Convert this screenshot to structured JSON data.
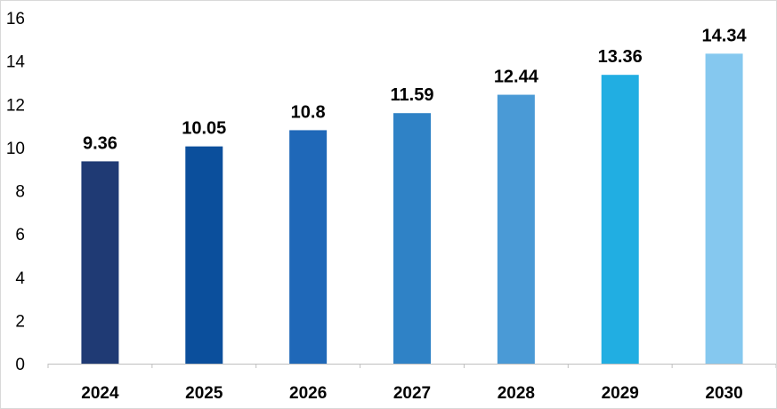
{
  "chart_data": {
    "type": "bar",
    "title": "",
    "xlabel": "",
    "ylabel": "",
    "categories": [
      "2024",
      "2025",
      "2026",
      "2027",
      "2028",
      "2029",
      "2030"
    ],
    "values": [
      9.36,
      10.05,
      10.8,
      11.59,
      12.44,
      13.36,
      14.34
    ],
    "value_labels": [
      "9.36",
      "10.05",
      "10.8",
      "11.59",
      "12.44",
      "13.36",
      "14.34"
    ],
    "ylim": [
      0,
      16
    ],
    "yticks": [
      0,
      2,
      4,
      6,
      8,
      10,
      12,
      14,
      16
    ],
    "ytick_labels": [
      "0",
      "2",
      "4",
      "6",
      "8",
      "10",
      "12",
      "14",
      "16"
    ],
    "grid": false,
    "legend": "none",
    "colors": [
      "#1f3a74",
      "#0b4f9c",
      "#1f68b8",
      "#2f82c6",
      "#4a9ad6",
      "#21aee2",
      "#85c8ef"
    ]
  }
}
